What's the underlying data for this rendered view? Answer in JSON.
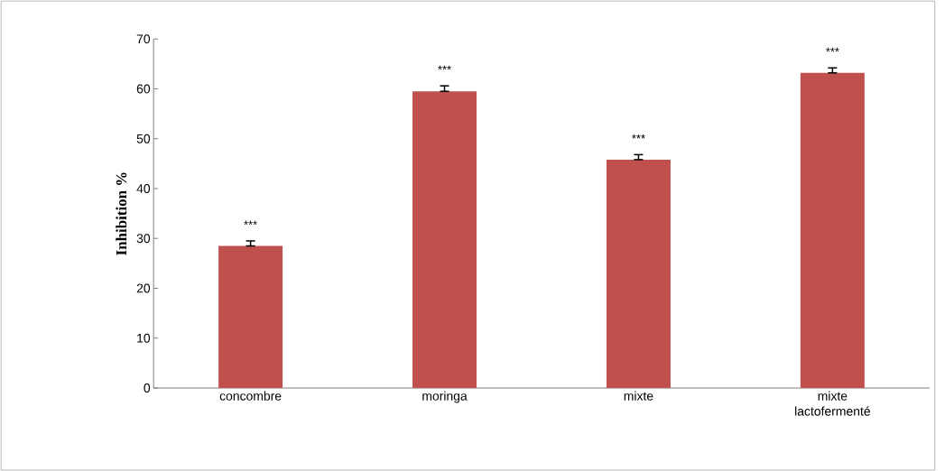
{
  "chart_data": {
    "type": "bar",
    "ylabel": "Inhibition %",
    "categories": [
      "concombre",
      "moringa",
      "mixte",
      "mixte lactofermenté"
    ],
    "values": [
      28.5,
      59.5,
      45.8,
      63.2
    ],
    "errors": [
      [
        28.5,
        29.5
      ],
      [
        59.5,
        60.6
      ],
      [
        45.8,
        46.8
      ],
      [
        63.2,
        64.2
      ]
    ],
    "color": "#c0504d",
    "ylim": [
      0,
      70
    ],
    "yticks": [
      0,
      10,
      20,
      30,
      40,
      50,
      60,
      70
    ],
    "annotations": [
      "***",
      "***",
      "***",
      "***"
    ]
  }
}
